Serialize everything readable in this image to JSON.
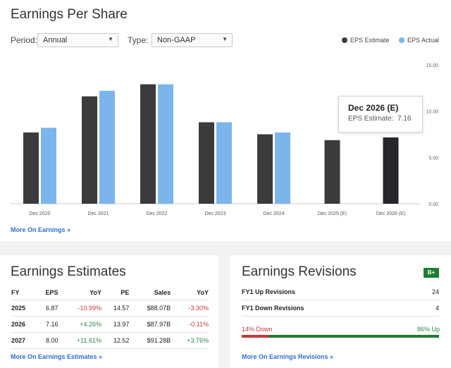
{
  "eps": {
    "title": "Earnings Per Share",
    "period_label": "Period:",
    "period_value": "Annual",
    "type_label": "Type:",
    "type_value": "Non-GAAP",
    "caret": "▼",
    "legend": [
      {
        "label": "EPS Estimate",
        "color": "#3b3b3e"
      },
      {
        "label": "EPS Actual",
        "color": "#7cb5ec"
      }
    ],
    "more_link": "More On Earnings »",
    "tooltip": {
      "title": "Dec 2026 (E)",
      "label": "EPS Estimate:",
      "value": "7.16"
    }
  },
  "chart_data": {
    "type": "bar",
    "categories": [
      "Dec 2020",
      "Dec 2021",
      "Dec 2022",
      "Dec 2023",
      "Dec 2024",
      "Dec 2025 (E)",
      "Dec 2026 (E)"
    ],
    "series": [
      {
        "name": "EPS Estimate",
        "color": "#3b3b3e",
        "values": [
          7.7,
          11.6,
          12.9,
          8.8,
          7.5,
          6.87,
          7.16
        ]
      },
      {
        "name": "EPS Actual",
        "color": "#7cb5ec",
        "values": [
          8.2,
          12.2,
          12.9,
          8.8,
          7.7,
          null,
          null
        ]
      }
    ],
    "highlight_color": "#24262b",
    "highlight_index": 6,
    "ylim": [
      0,
      15
    ],
    "yticks": [
      "0.00",
      "5.00",
      "10.00",
      "15.00"
    ],
    "ytick_values": [
      0,
      5,
      10,
      15
    ],
    "grid": false,
    "legend_position": "top-right"
  },
  "estimates": {
    "title": "Earnings Estimates",
    "columns": [
      "FY",
      "EPS",
      "YoY",
      "PE",
      "Sales",
      "YoY"
    ],
    "rows": [
      {
        "fy": "2025",
        "eps": "6.87",
        "yoy": "-10.99%",
        "pe": "14.57",
        "sales": "$88.07B",
        "sales_yoy": "-3.30%"
      },
      {
        "fy": "2026",
        "eps": "7.16",
        "yoy": "+4.26%",
        "pe": "13.97",
        "sales": "$87.97B",
        "sales_yoy": "-0.11%"
      },
      {
        "fy": "2027",
        "eps": "8.00",
        "yoy": "+11.61%",
        "pe": "12.52",
        "sales": "$91.28B",
        "sales_yoy": "+3.76%"
      }
    ],
    "more_link": "More On Earnings Estimates »"
  },
  "revisions": {
    "title": "Earnings Revisions",
    "grade": "B+",
    "up_label": "FY1 Up Revisions",
    "up_value": "24",
    "down_label": "FY1 Down Revisions",
    "down_value": "4",
    "down_pct_label": "14% Down",
    "up_pct_label": "86% Up",
    "down_fraction": 0.14,
    "down_color": "#c53a3a",
    "up_color": "#1e7d32",
    "more_link": "More On Earnings Revisions »"
  }
}
